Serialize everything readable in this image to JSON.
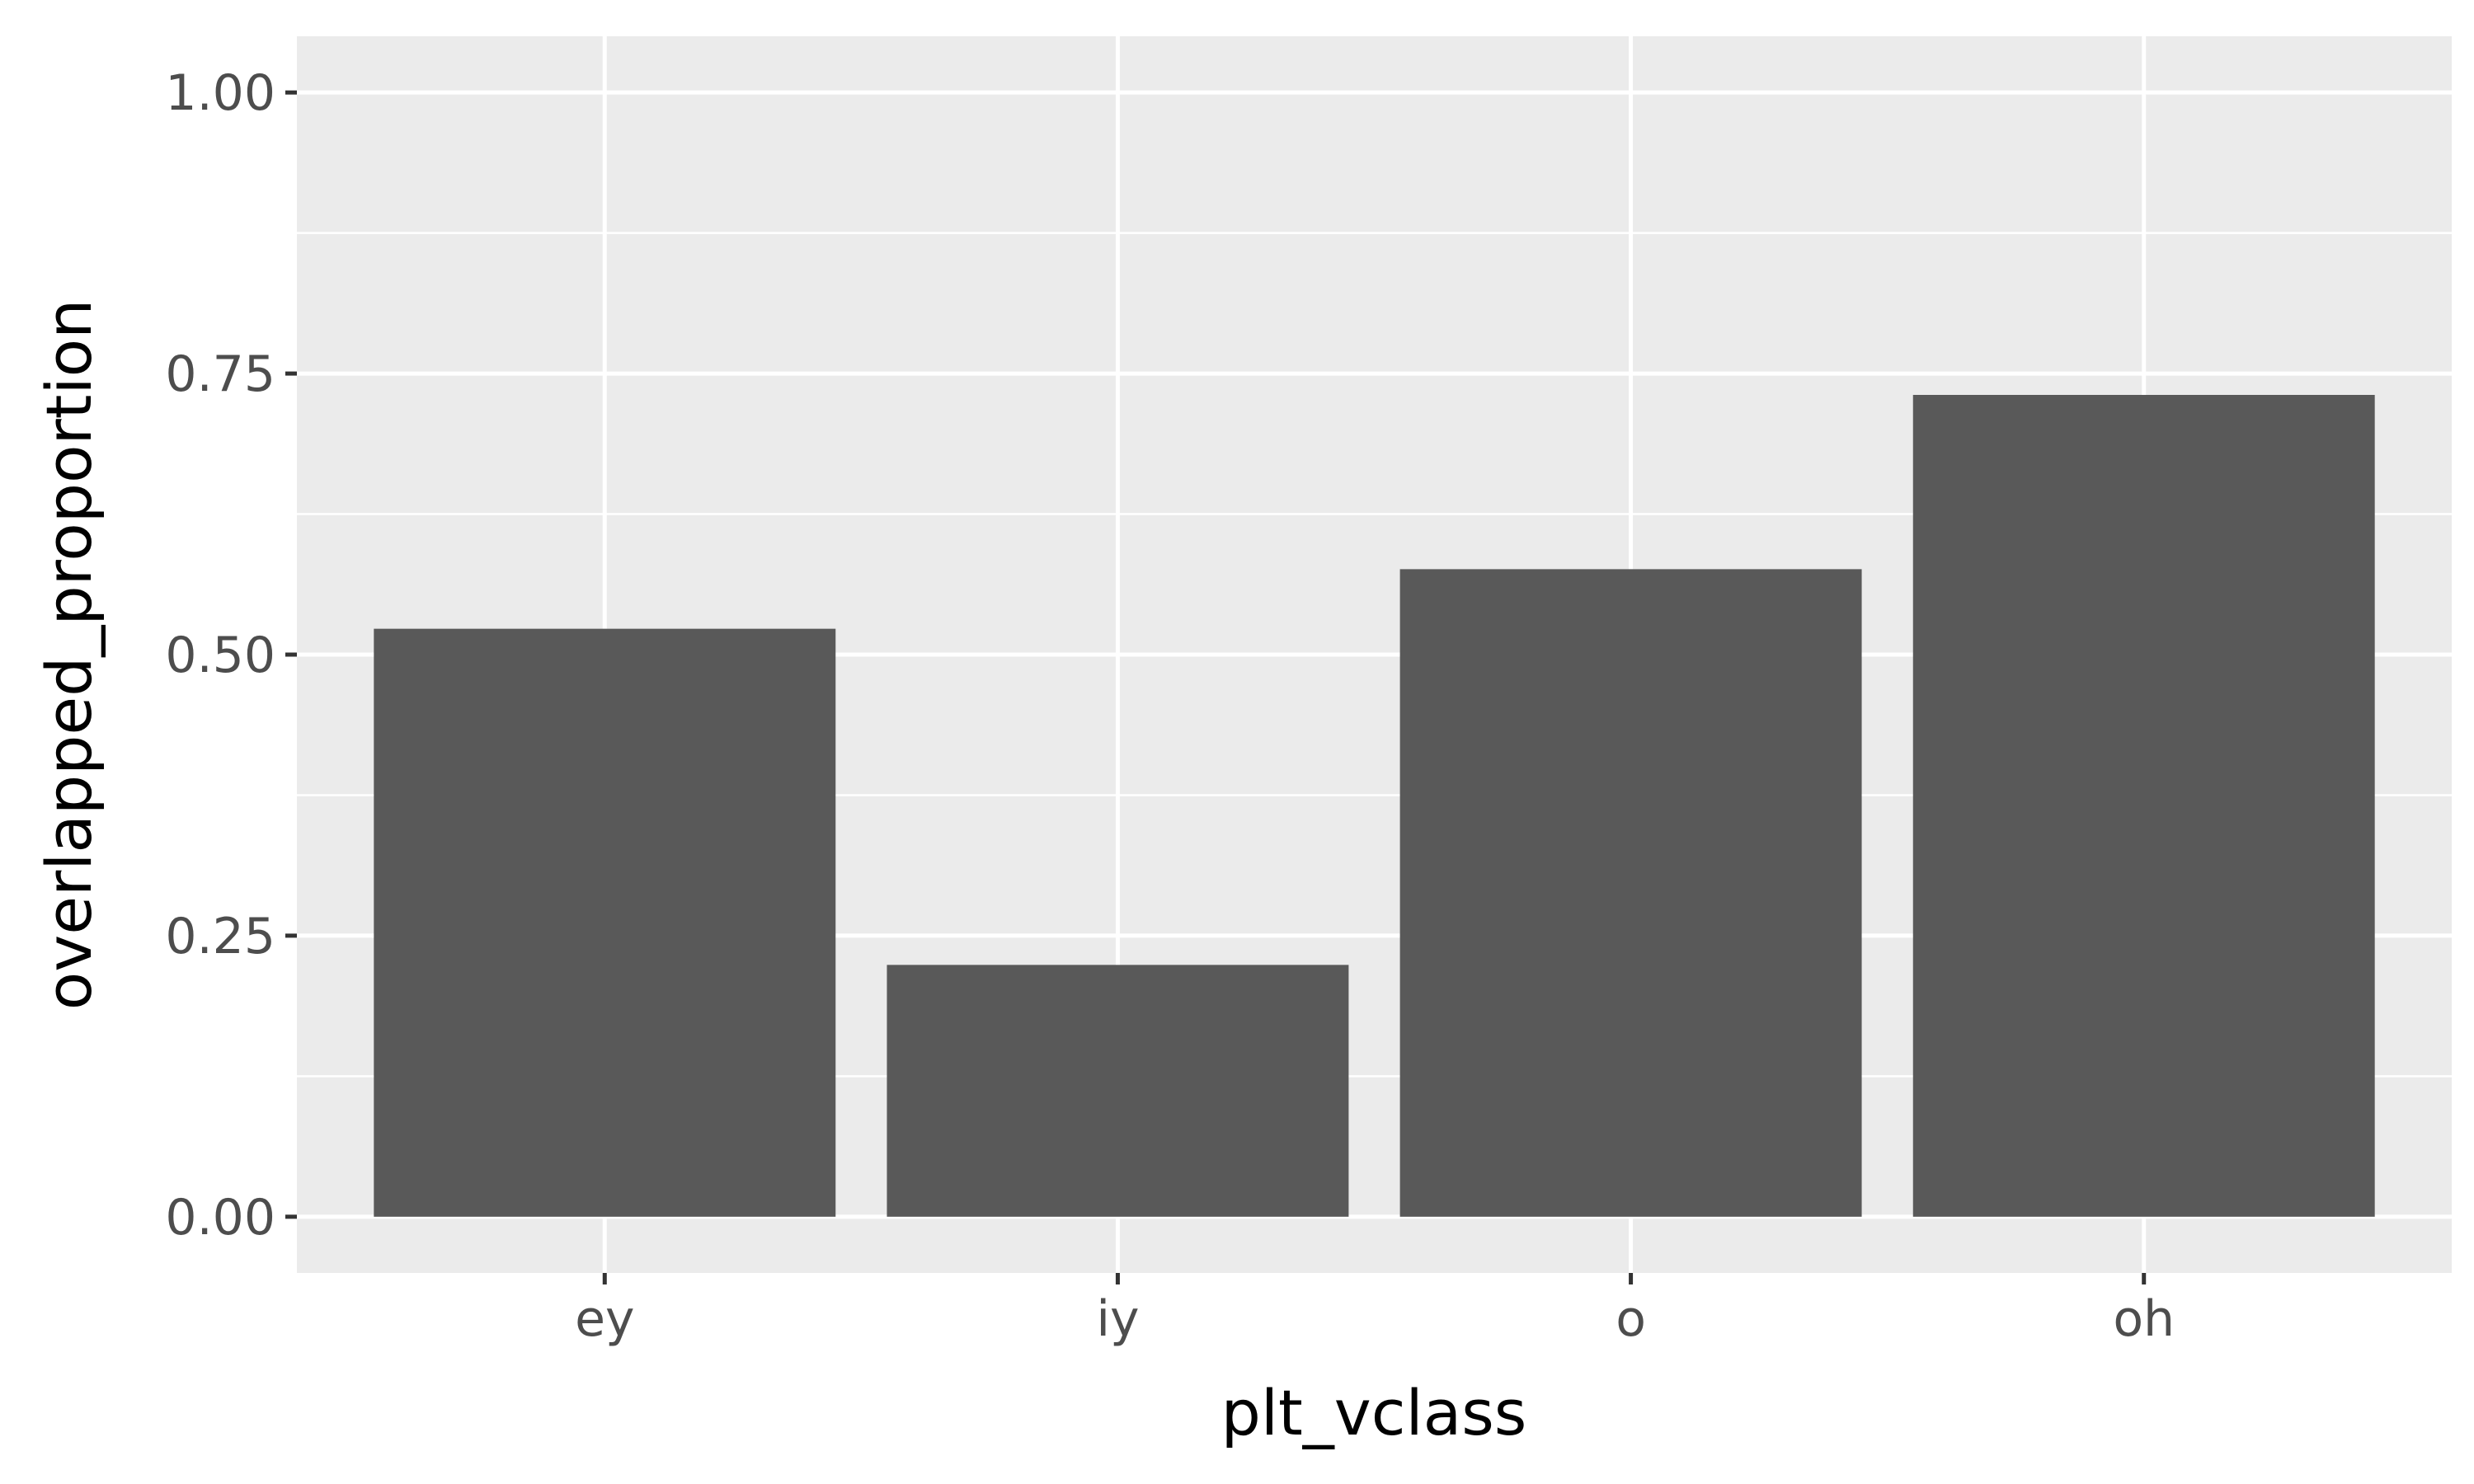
{
  "chart_data": {
    "type": "bar",
    "title": "",
    "categories": [
      "ey",
      "iy",
      "o",
      "oh"
    ],
    "values": [
      0.523,
      0.224,
      0.576,
      0.731
    ],
    "xlabel": "plt_vclass",
    "ylabel": "overlapped_proportion",
    "ylim": [
      -0.05,
      1.05
    ],
    "yticks": [
      0,
      0.25,
      0.5,
      0.75,
      1
    ],
    "ytick_labels": [
      "0.00",
      "0.25",
      "0.50",
      "0.75",
      "1.00"
    ],
    "grid": true,
    "legend": "none"
  },
  "colors": {
    "panel_background": "#ebebeb",
    "grid_line": "#ffffff",
    "bar_fill": "#595959",
    "tick": "#333333"
  }
}
